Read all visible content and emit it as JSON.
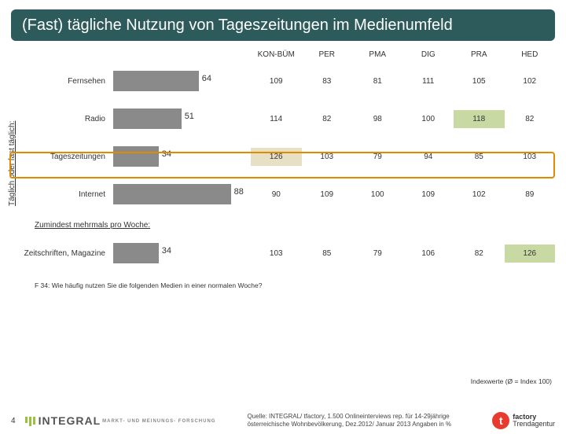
{
  "title": "(Fast) tägliche Nutzung von Tageszeitungen im Medienumfeld",
  "columns": [
    "KON-BÜM",
    "PER",
    "PMA",
    "DIG",
    "PRA",
    "HED"
  ],
  "axis_label": "Täglich oder fast täglich:",
  "bar_color": "#8a8a8a",
  "highlight_fill": "#e8e0c4",
  "green_fill": "#c9d9a3",
  "highlight_border": "#e08a00",
  "bar_max": 100,
  "rows_a": [
    {
      "label": "Fernsehen",
      "value": 64,
      "cells": [
        109,
        83,
        81,
        111,
        105,
        102
      ],
      "hl": [],
      "gr": []
    },
    {
      "label": "Radio",
      "value": 51,
      "cells": [
        114,
        82,
        98,
        100,
        118,
        82
      ],
      "hl": [],
      "gr": [
        4
      ]
    },
    {
      "label": "Tageszeitungen",
      "value": 34,
      "cells": [
        126,
        103,
        79,
        94,
        85,
        103
      ],
      "hl": [
        0
      ],
      "gr": [],
      "boxed": true
    },
    {
      "label": "Internet",
      "value": 88,
      "cells": [
        90,
        109,
        100,
        109,
        102,
        89
      ],
      "hl": [],
      "gr": []
    }
  ],
  "sub_heading": "Zumindest mehrmals pro Woche:",
  "rows_b": [
    {
      "label": "Zeitschriften, Magazine",
      "value": 34,
      "cells": [
        103,
        85,
        79,
        106,
        82,
        126
      ],
      "hl": [],
      "gr": [
        5
      ]
    }
  ],
  "footnote": "F 34: Wie häufig nutzen Sie die folgenden Medien in einer normalen Woche?",
  "index_note": "Indexwerte (Ø = Index 100)",
  "page": "4",
  "source": "Quelle: INTEGRAL/ tfactory, 1.500 Onlineinterviews rep. für 14-29jährige österreichische Wohnbevölkerung, Dez.2012/ Januar 2013                       Angaben in %",
  "integral": {
    "name": "INTEGRAL",
    "sub": "MARKT- UND\nMEINUNGS-\nFORSCHUNG"
  },
  "tfactory": {
    "t": "t",
    "line1": "factory",
    "line2": "Trendagentur"
  }
}
